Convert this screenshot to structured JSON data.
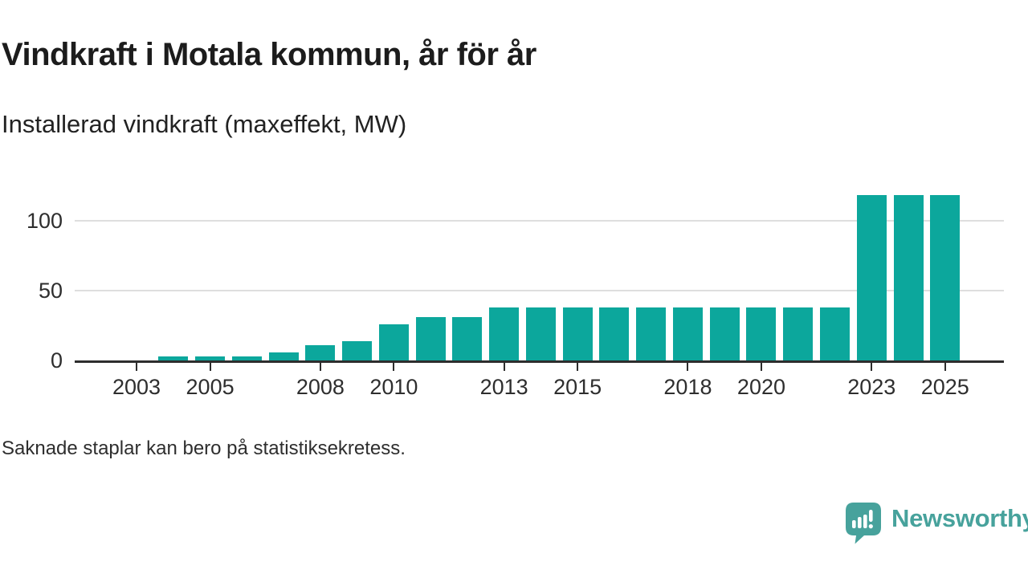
{
  "header": {
    "title": "Vindkraft i Motala kommun, år för år",
    "subtitle": "Installerad vindkraft (maxeffekt, MW)"
  },
  "footnote": "Saknade staplar kan bero på statistiksekretess.",
  "branding": {
    "name": "Newsworthy",
    "icon": "speech-bubble-bar-chart-icon",
    "color": "#47a29c"
  },
  "colors": {
    "bar": "#0ca79c",
    "axis": "#2d2d2d",
    "grid": "#dedede",
    "text": "#2e2e2e",
    "title": "#1c1c1c"
  },
  "chart_data": {
    "type": "bar",
    "title": "Vindkraft i Motala kommun, år för år",
    "subtitle": "Installerad vindkraft (maxeffekt, MW)",
    "unit": "MW",
    "categories": [
      2002,
      2003,
      2004,
      2005,
      2006,
      2007,
      2008,
      2009,
      2010,
      2011,
      2012,
      2013,
      2014,
      2015,
      2016,
      2017,
      2018,
      2019,
      2020,
      2021,
      2022,
      2023,
      2024,
      2025
    ],
    "values": [
      null,
      null,
      3,
      3,
      3,
      6,
      11,
      14,
      26,
      31,
      31,
      38,
      38,
      38,
      38,
      38,
      38,
      38,
      38,
      38,
      38,
      118,
      118,
      118
    ],
    "missing_values_note": "Saknade staplar kan bero på statistiksekretess.",
    "xticks": [
      2003,
      2005,
      2008,
      2010,
      2013,
      2015,
      2018,
      2020,
      2023,
      2025
    ],
    "yticks": [
      0,
      50,
      100
    ],
    "ylim": [
      0,
      125
    ],
    "grid": "horizontal",
    "legend": "none"
  }
}
